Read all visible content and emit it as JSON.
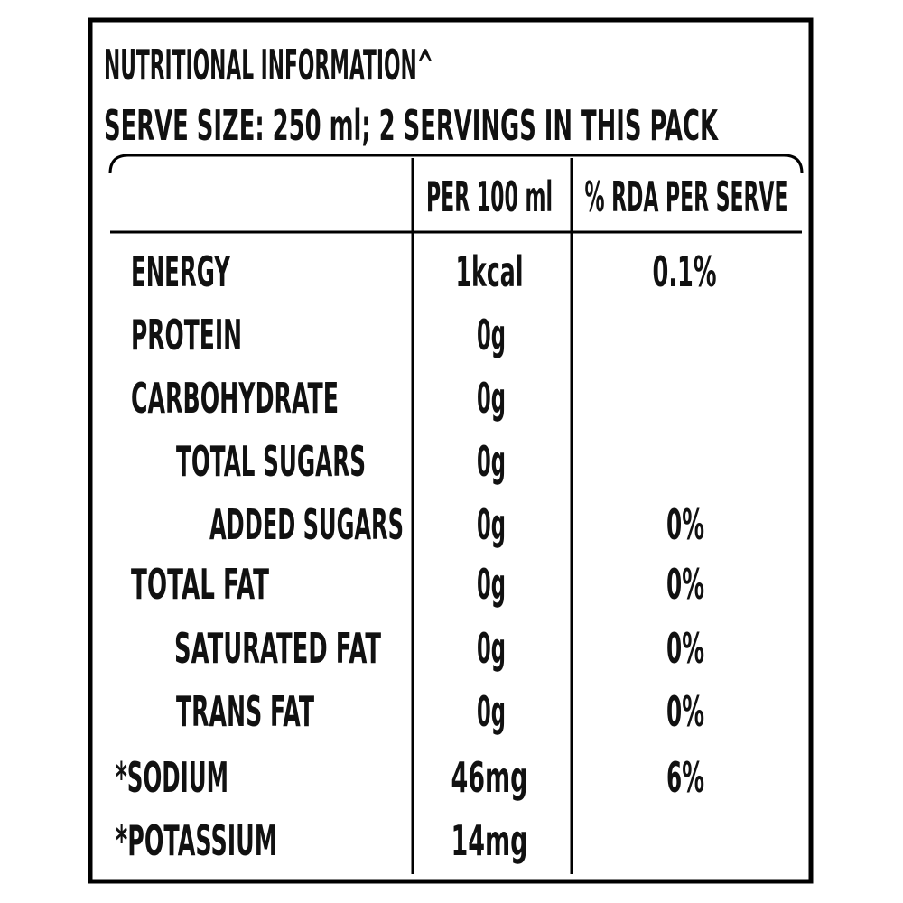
{
  "header": {
    "title": "NUTRITIONAL INFORMATION^",
    "serve_size": "SERVE SIZE:  250 ml; 2 SERVINGS IN THIS PACK"
  },
  "table": {
    "columns": [
      "PER 100 ml",
      "% RDA PER SERVE"
    ],
    "rows": [
      {
        "name": "ENERGY",
        "per_100ml": "1kcal",
        "rda": "0.1%"
      },
      {
        "name": "PROTEIN",
        "per_100ml": "0g"
      },
      {
        "name": "CARBOHYDRATE",
        "per_100ml": "0g"
      },
      {
        "name": "TOTAL SUGARS",
        "per_100ml": "0g"
      },
      {
        "name": "ADDED SUGARS",
        "per_100ml": "0g",
        "rda": "0%"
      },
      {
        "name": "TOTAL FAT",
        "per_100ml": "0g",
        "rda": "0%"
      },
      {
        "name": "SATURATED FAT",
        "per_100ml": "0g",
        "rda": "0%"
      },
      {
        "name": "TRANS FAT",
        "per_100ml": "0g",
        "rda": "0%"
      },
      {
        "name": "*SODIUM",
        "per_100ml": "46mg",
        "rda": "6%"
      },
      {
        "name": "*POTASSIUM",
        "per_100ml": "14mg"
      }
    ]
  }
}
